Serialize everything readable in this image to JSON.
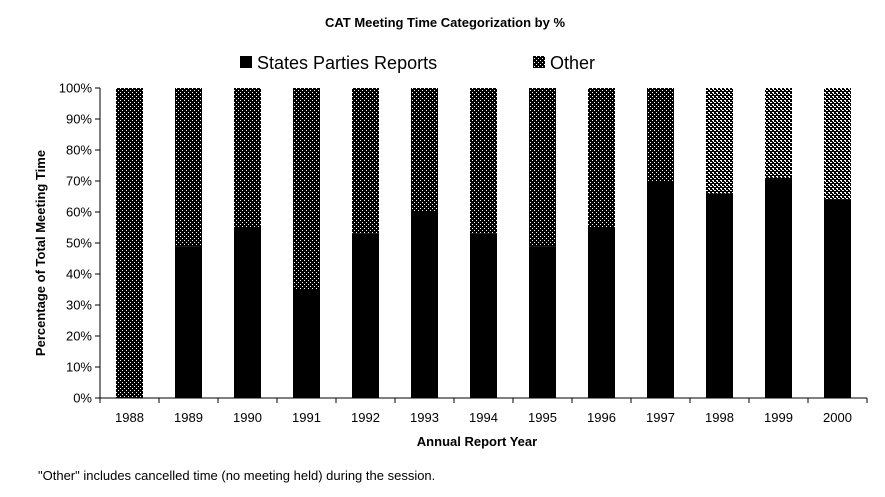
{
  "chart_data": {
    "type": "bar",
    "stacked": true,
    "title": "CAT Meeting Time Categorization by %",
    "xlabel": "Annual Report Year",
    "ylabel": "Percentage of Total Meeting Time",
    "categories": [
      "1988",
      "1989",
      "1990",
      "1991",
      "1992",
      "1993",
      "1994",
      "1995",
      "1996",
      "1997",
      "1998",
      "1999",
      "2000"
    ],
    "series": [
      {
        "name": "States Parties Reports",
        "color": "#000000",
        "pattern": "solid",
        "values": [
          0,
          49,
          55,
          35,
          53,
          60,
          53,
          49,
          55,
          70,
          66,
          71,
          64
        ]
      },
      {
        "name": "Other",
        "color": "#000000",
        "pattern": "dotted",
        "values": [
          100,
          51,
          45,
          65,
          47,
          40,
          47,
          51,
          45,
          30,
          34,
          29,
          36
        ]
      }
    ],
    "ylim": [
      0,
      100
    ],
    "yticks": [
      "0%",
      "10%",
      "20%",
      "30%",
      "40%",
      "50%",
      "60%",
      "70%",
      "80%",
      "90%",
      "100%"
    ],
    "legend_position": "top",
    "grid": false
  },
  "footnote": "\"Other\" includes cancelled time (no meeting held) during the session."
}
